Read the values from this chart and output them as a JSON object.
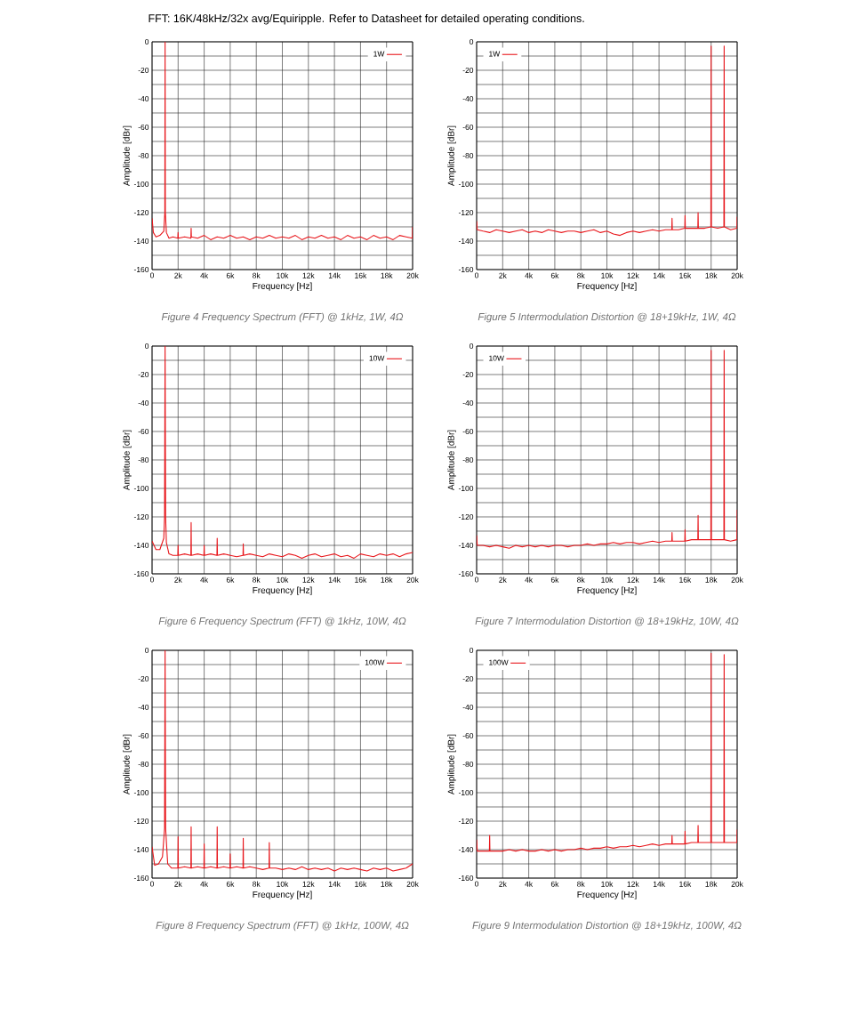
{
  "chart_data": [
    {
      "type": "line",
      "title": "FFT: 16K/48kHz/32x avg/Equiripple. Refer to Datasheet for detailed operating conditions.",
      "xlabel": "Frequency [Hz]",
      "ylabel": "Amplitude [dBr]",
      "annotations": [
        "Figure 4 Frequency Spectrum (FFT) @ 1kHz, 1W, 4Ω"
      ],
      "xlim": [
        0,
        20000
      ],
      "ylim": [
        -160,
        0
      ],
      "xticks": [
        0,
        {
          "value": 2000,
          "label": "2k"
        },
        {
          "value": 4000,
          "label": "4k"
        },
        {
          "value": 6000,
          "label": "6k"
        },
        {
          "value": 8000,
          "label": "8k"
        },
        {
          "value": 10000,
          "label": "10k"
        },
        {
          "value": 12000,
          "label": "12k"
        },
        {
          "value": 14000,
          "label": "14k"
        },
        {
          "value": 16000,
          "label": "16k"
        },
        {
          "value": 18000,
          "label": "18k"
        },
        {
          "value": 20000,
          "label": "20k"
        }
      ],
      "yticks": [
        0,
        {
          "value": -10,
          "label": null
        },
        -20,
        {
          "value": -30,
          "label": null
        },
        -40,
        {
          "value": -50,
          "label": null
        },
        -60,
        {
          "value": -70,
          "label": null
        },
        -80,
        {
          "value": -90,
          "label": null
        },
        -100,
        {
          "value": -110,
          "label": null
        },
        -120,
        {
          "value": -130,
          "label": null
        },
        -140,
        {
          "value": -150,
          "label": null
        },
        -160
      ],
      "grid": true,
      "legend": "top right",
      "series": [
        {
          "name": "1W",
          "color": "#e8161b",
          "x": [
            0,
            100,
            300,
            600,
            900,
            980,
            1000,
            1020,
            1100,
            1300,
            1600,
            1980,
            2000,
            2020,
            2500,
            2980,
            3000,
            3020,
            3500,
            4000,
            4500,
            5000,
            5500,
            6000,
            6500,
            7000,
            7500,
            8000,
            8500,
            9000,
            9500,
            10000,
            10500,
            11000,
            11500,
            12000,
            12500,
            13000,
            13500,
            14000,
            14500,
            15000,
            15500,
            16000,
            16500,
            17000,
            17500,
            18000,
            18500,
            19000,
            19500,
            19980,
            20000
          ],
          "values": [
            -124,
            -134,
            -137,
            -136,
            -133,
            -120,
            0,
            -120,
            -134,
            -138,
            -137,
            -138,
            -134,
            -138,
            -137,
            -138,
            -131,
            -137,
            -138,
            -136,
            -139,
            -137,
            -138,
            -136,
            -138,
            -137,
            -139,
            -137,
            -138,
            -136,
            -138,
            -137,
            -138,
            -136,
            -139,
            -137,
            -138,
            -136,
            -138,
            -137,
            -139,
            -136,
            -138,
            -137,
            -139,
            -136,
            -138,
            -137,
            -139,
            -136,
            -137,
            -138,
            -130
          ]
        }
      ]
    },
    {
      "type": "line",
      "xlabel": "Frequency [Hz]",
      "ylabel": "Amplitude [dBr]",
      "annotations": [
        "Figure 5 Intermodulation Distortion @ 18+19kHz, 1W, 4Ω"
      ],
      "xlim": [
        0,
        20000
      ],
      "ylim": [
        -160,
        0
      ],
      "xticks": [
        0,
        {
          "value": 2000,
          "label": "2k"
        },
        {
          "value": 4000,
          "label": "4k"
        },
        {
          "value": 6000,
          "label": "6k"
        },
        {
          "value": 8000,
          "label": "8k"
        },
        {
          "value": 10000,
          "label": "10k"
        },
        {
          "value": 12000,
          "label": "12k"
        },
        {
          "value": 14000,
          "label": "14k"
        },
        {
          "value": 16000,
          "label": "16k"
        },
        {
          "value": 18000,
          "label": "18k"
        },
        {
          "value": 20000,
          "label": "20k"
        }
      ],
      "yticks": [
        0,
        {
          "value": -10,
          "label": null
        },
        -20,
        {
          "value": -30,
          "label": null
        },
        -40,
        {
          "value": -50,
          "label": null
        },
        -60,
        {
          "value": -70,
          "label": null
        },
        -80,
        {
          "value": -90,
          "label": null
        },
        -100,
        {
          "value": -110,
          "label": null
        },
        -120,
        {
          "value": -130,
          "label": null
        },
        -140,
        {
          "value": -150,
          "label": null
        },
        -160
      ],
      "grid": true,
      "legend": "top left",
      "series": [
        {
          "name": "1W",
          "color": "#e8161b",
          "x": [
            0,
            50,
            500,
            1000,
            1500,
            2000,
            2500,
            3000,
            3500,
            4000,
            4500,
            5000,
            5500,
            6000,
            6500,
            7000,
            7500,
            8000,
            8500,
            9000,
            9500,
            10000,
            10500,
            11000,
            11500,
            12000,
            12500,
            13000,
            13500,
            14000,
            14500,
            14980,
            15000,
            15020,
            15500,
            15980,
            16000,
            16020,
            16500,
            16980,
            17000,
            17020,
            17500,
            17980,
            18000,
            18020,
            18500,
            18980,
            19000,
            19020,
            19500,
            19980,
            20000
          ],
          "values": [
            -126,
            -132,
            -133,
            -134,
            -132,
            -133,
            -134,
            -133,
            -132,
            -134,
            -133,
            -134,
            -132,
            -133,
            -134,
            -133,
            -133,
            -134,
            -133,
            -132,
            -134,
            -133,
            -135,
            -136,
            -134,
            -133,
            -134,
            -133,
            -132,
            -133,
            -132,
            -132,
            -124,
            -132,
            -132,
            -131,
            -122,
            -131,
            -131,
            -131,
            -120,
            -131,
            -131,
            -130,
            -3,
            -130,
            -131,
            -130,
            -3,
            -130,
            -132,
            -131,
            -123
          ]
        }
      ]
    },
    {
      "type": "line",
      "xlabel": "Frequency [Hz]",
      "ylabel": "Amplitude [dBr]",
      "annotations": [
        "Figure 6 Frequency Spectrum (FFT) @ 1kHz, 10W, 4Ω"
      ],
      "xlim": [
        0,
        20000
      ],
      "ylim": [
        -160,
        0
      ],
      "xticks": [
        0,
        {
          "value": 2000,
          "label": "2k"
        },
        {
          "value": 4000,
          "label": "4k"
        },
        {
          "value": 6000,
          "label": "6k"
        },
        {
          "value": 8000,
          "label": "8k"
        },
        {
          "value": 10000,
          "label": "10k"
        },
        {
          "value": 12000,
          "label": "12k"
        },
        {
          "value": 14000,
          "label": "14k"
        },
        {
          "value": 16000,
          "label": "16k"
        },
        {
          "value": 18000,
          "label": "18k"
        },
        {
          "value": 20000,
          "label": "20k"
        }
      ],
      "yticks": [
        0,
        {
          "value": -10,
          "label": null
        },
        -20,
        {
          "value": -30,
          "label": null
        },
        -40,
        {
          "value": -50,
          "label": null
        },
        -60,
        {
          "value": -70,
          "label": null
        },
        -80,
        {
          "value": -90,
          "label": null
        },
        -100,
        {
          "value": -110,
          "label": null
        },
        -120,
        {
          "value": -130,
          "label": null
        },
        -140,
        {
          "value": -150,
          "label": null
        },
        -160
      ],
      "grid": true,
      "legend": "top right",
      "series": [
        {
          "name": "10W",
          "color": "#e8161b",
          "x": [
            0,
            300,
            600,
            900,
            960,
            1000,
            1040,
            1100,
            1300,
            1600,
            1980,
            2000,
            2020,
            2500,
            2980,
            3000,
            3020,
            3500,
            3980,
            4000,
            4020,
            4500,
            4980,
            5000,
            5020,
            5500,
            6000,
            6500,
            6980,
            7000,
            7020,
            7500,
            8000,
            8500,
            9000,
            9500,
            10000,
            10500,
            11000,
            11500,
            12000,
            12500,
            13000,
            13500,
            14000,
            14500,
            15000,
            15500,
            16000,
            16500,
            17000,
            17500,
            18000,
            18500,
            19000,
            19500,
            20000
          ],
          "values": [
            -137,
            -143,
            -143,
            -135,
            -120,
            0,
            -120,
            -138,
            -146,
            -147,
            -147,
            -140,
            -147,
            -146,
            -147,
            -124,
            -147,
            -146,
            -147,
            -140,
            -147,
            -146,
            -147,
            -135,
            -147,
            -146,
            -147,
            -148,
            -147,
            -139,
            -147,
            -146,
            -147,
            -148,
            -146,
            -147,
            -148,
            -146,
            -147,
            -149,
            -147,
            -146,
            -148,
            -147,
            -146,
            -148,
            -147,
            -149,
            -146,
            -147,
            -148,
            -146,
            -147,
            -146,
            -148,
            -146,
            -145
          ]
        }
      ]
    },
    {
      "type": "line",
      "xlabel": "Frequency [Hz]",
      "ylabel": "Amplitude [dBr]",
      "annotations": [
        "Figure 7 Intermodulation Distortion @ 18+19kHz, 10W, 4Ω"
      ],
      "xlim": [
        0,
        20000
      ],
      "ylim": [
        -160,
        0
      ],
      "xticks": [
        0,
        {
          "value": 2000,
          "label": "2k"
        },
        {
          "value": 4000,
          "label": "4k"
        },
        {
          "value": 6000,
          "label": "6k"
        },
        {
          "value": 8000,
          "label": "8k"
        },
        {
          "value": 10000,
          "label": "10k"
        },
        {
          "value": 12000,
          "label": "12k"
        },
        {
          "value": 14000,
          "label": "14k"
        },
        {
          "value": 16000,
          "label": "16k"
        },
        {
          "value": 18000,
          "label": "18k"
        },
        {
          "value": 20000,
          "label": "20k"
        }
      ],
      "yticks": [
        0,
        {
          "value": -10,
          "label": null
        },
        -20,
        {
          "value": -30,
          "label": null
        },
        -40,
        {
          "value": -50,
          "label": null
        },
        -60,
        {
          "value": -70,
          "label": null
        },
        -80,
        {
          "value": -90,
          "label": null
        },
        -100,
        {
          "value": -110,
          "label": null
        },
        -120,
        {
          "value": -130,
          "label": null
        },
        -140,
        {
          "value": -150,
          "label": null
        },
        -160
      ],
      "grid": true,
      "legend": "top left",
      "series": [
        {
          "name": "10W",
          "color": "#e8161b",
          "x": [
            0,
            50,
            500,
            1000,
            1500,
            2000,
            2500,
            3000,
            3500,
            4000,
            4500,
            5000,
            5500,
            6000,
            6500,
            7000,
            7500,
            8000,
            8500,
            9000,
            9500,
            10000,
            10500,
            11000,
            11500,
            12000,
            12500,
            13000,
            13500,
            14000,
            14500,
            14980,
            15000,
            15020,
            15500,
            15980,
            16000,
            16020,
            16500,
            16980,
            17000,
            17020,
            17500,
            17980,
            18000,
            18020,
            18500,
            18980,
            19000,
            19020,
            19500,
            19980,
            20000
          ],
          "values": [
            -133,
            -140,
            -140,
            -141,
            -140,
            -141,
            -142,
            -140,
            -141,
            -140,
            -141,
            -140,
            -141,
            -140,
            -140,
            -141,
            -140,
            -140,
            -139,
            -140,
            -139,
            -139,
            -138,
            -139,
            -138,
            -138,
            -139,
            -138,
            -137,
            -138,
            -137,
            -137,
            -131,
            -137,
            -137,
            -137,
            -129,
            -137,
            -136,
            -136,
            -119,
            -136,
            -136,
            -136,
            -3,
            -136,
            -136,
            -136,
            -3,
            -136,
            -137,
            -136,
            -115
          ]
        }
      ]
    },
    {
      "type": "line",
      "xlabel": "Frequency [Hz]",
      "ylabel": "Amplitude [dBr]",
      "annotations": [
        "Figure 8 Frequency Spectrum (FFT) @ 1kHz, 100W, 4Ω"
      ],
      "xlim": [
        0,
        20000
      ],
      "ylim": [
        -160,
        0
      ],
      "xticks": [
        0,
        {
          "value": 2000,
          "label": "2k"
        },
        {
          "value": 4000,
          "label": "4k"
        },
        {
          "value": 6000,
          "label": "6k"
        },
        {
          "value": 8000,
          "label": "8k"
        },
        {
          "value": 10000,
          "label": "10k"
        },
        {
          "value": 12000,
          "label": "12k"
        },
        {
          "value": 14000,
          "label": "14k"
        },
        {
          "value": 16000,
          "label": "16k"
        },
        {
          "value": 18000,
          "label": "18k"
        },
        {
          "value": 20000,
          "label": "20k"
        }
      ],
      "yticks": [
        0,
        {
          "value": -10,
          "label": null
        },
        -20,
        {
          "value": -30,
          "label": null
        },
        -40,
        {
          "value": -50,
          "label": null
        },
        -60,
        {
          "value": -70,
          "label": null
        },
        -80,
        {
          "value": -90,
          "label": null
        },
        -100,
        {
          "value": -110,
          "label": null
        },
        -120,
        {
          "value": -130,
          "label": null
        },
        -140,
        {
          "value": -150,
          "label": null
        },
        -160
      ],
      "grid": true,
      "legend": "top right",
      "series": [
        {
          "name": "100W",
          "color": "#e8161b",
          "x": [
            0,
            200,
            500,
            800,
            960,
            1000,
            1040,
            1200,
            1500,
            1980,
            2000,
            2020,
            2500,
            2980,
            3000,
            3020,
            3500,
            3980,
            4000,
            4020,
            4500,
            4980,
            5000,
            5020,
            5500,
            5980,
            6000,
            6020,
            6500,
            6980,
            7000,
            7020,
            7500,
            8000,
            8500,
            8980,
            9000,
            9020,
            9500,
            10000,
            10500,
            11000,
            11500,
            12000,
            12500,
            13000,
            13500,
            14000,
            14500,
            15000,
            15500,
            16000,
            16500,
            17000,
            17500,
            18000,
            18500,
            19000,
            19500,
            20000
          ],
          "values": [
            -138,
            -151,
            -150,
            -145,
            -125,
            0,
            -125,
            -150,
            -153,
            -153,
            -131,
            -153,
            -152,
            -153,
            -124,
            -153,
            -152,
            -153,
            -136,
            -153,
            -152,
            -153,
            -124,
            -153,
            -152,
            -153,
            -143,
            -153,
            -152,
            -153,
            -132,
            -153,
            -152,
            -153,
            -154,
            -153,
            -135,
            -153,
            -153,
            -154,
            -153,
            -154,
            -152,
            -154,
            -153,
            -154,
            -153,
            -155,
            -153,
            -154,
            -153,
            -154,
            -155,
            -153,
            -154,
            -153,
            -155,
            -154,
            -153,
            -150
          ]
        }
      ]
    },
    {
      "type": "line",
      "xlabel": "Frequency [Hz]",
      "ylabel": "Amplitude [dBr]",
      "annotations": [
        "Figure 9 Intermodulation Distortion @ 18+19kHz, 100W, 4Ω"
      ],
      "xlim": [
        0,
        20000
      ],
      "ylim": [
        -160,
        0
      ],
      "xticks": [
        0,
        {
          "value": 2000,
          "label": "2k"
        },
        {
          "value": 4000,
          "label": "4k"
        },
        {
          "value": 6000,
          "label": "6k"
        },
        {
          "value": 8000,
          "label": "8k"
        },
        {
          "value": 10000,
          "label": "10k"
        },
        {
          "value": 12000,
          "label": "12k"
        },
        {
          "value": 14000,
          "label": "14k"
        },
        {
          "value": 16000,
          "label": "16k"
        },
        {
          "value": 18000,
          "label": "18k"
        },
        {
          "value": 20000,
          "label": "20k"
        }
      ],
      "yticks": [
        0,
        {
          "value": -10,
          "label": null
        },
        -20,
        {
          "value": -30,
          "label": null
        },
        -40,
        {
          "value": -50,
          "label": null
        },
        -60,
        {
          "value": -70,
          "label": null
        },
        -80,
        {
          "value": -90,
          "label": null
        },
        -100,
        {
          "value": -110,
          "label": null
        },
        -120,
        {
          "value": -130,
          "label": null
        },
        -140,
        {
          "value": -150,
          "label": null
        },
        -160
      ],
      "grid": true,
      "legend": "top left",
      "series": [
        {
          "name": "100W",
          "color": "#e8161b",
          "x": [
            0,
            50,
            500,
            980,
            1000,
            1020,
            1500,
            2000,
            2500,
            3000,
            3500,
            4000,
            4500,
            5000,
            5500,
            6000,
            6500,
            7000,
            7500,
            8000,
            8500,
            9000,
            9500,
            10000,
            10500,
            11000,
            11500,
            12000,
            12500,
            13000,
            13500,
            14000,
            14500,
            14980,
            15000,
            15020,
            15500,
            15980,
            16000,
            16020,
            16500,
            16980,
            17000,
            17020,
            17500,
            17980,
            18000,
            18020,
            18500,
            18980,
            19000,
            19020,
            19500,
            19980,
            20000
          ],
          "values": [
            -133,
            -141,
            -141,
            -141,
            -130,
            -141,
            -141,
            -141,
            -140,
            -141,
            -140,
            -141,
            -141,
            -140,
            -141,
            -140,
            -141,
            -140,
            -140,
            -139,
            -140,
            -139,
            -139,
            -138,
            -139,
            -138,
            -138,
            -137,
            -138,
            -137,
            -136,
            -137,
            -136,
            -136,
            -130,
            -136,
            -136,
            -136,
            -127,
            -136,
            -135,
            -135,
            -123,
            -135,
            -135,
            -135,
            -2,
            -135,
            -135,
            -135,
            -3,
            -135,
            -135,
            -135,
            -126
          ]
        }
      ]
    }
  ]
}
